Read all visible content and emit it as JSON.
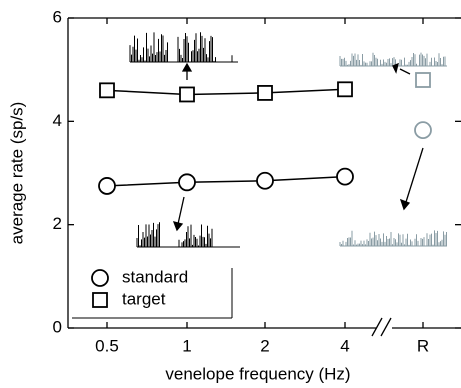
{
  "chart_data": {
    "type": "line",
    "categories": [
      "0.5",
      "1",
      "2",
      "4",
      "R"
    ],
    "axis_break_before": 4,
    "xlabel": "venelope frequency (Hz)",
    "ylabel": "average rate (sp/s)",
    "ylim": [
      0,
      6
    ],
    "yticks": [
      0,
      2,
      4,
      6
    ],
    "legend": "lower left",
    "series": [
      {
        "name": "standard",
        "marker": "circle",
        "color": "#000000",
        "r_color": "#8a9ca4",
        "values": [
          2.75,
          2.82,
          2.85,
          2.93,
          3.83
        ]
      },
      {
        "name": "target",
        "marker": "square",
        "color": "#000000",
        "r_color": "#8a9ca4",
        "values": [
          4.6,
          4.52,
          4.55,
          4.62,
          4.8
        ]
      }
    ]
  }
}
